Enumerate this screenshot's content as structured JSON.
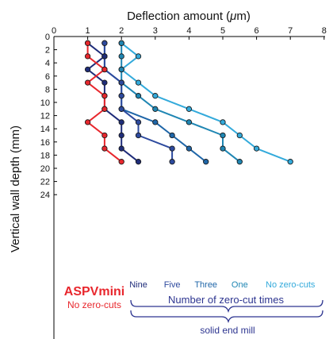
{
  "chart_data": {
    "type": "line",
    "xlabel_prefix": "Deflection amount (",
    "xlabel_mu": "μ",
    "xlabel_suffix": "m)",
    "ylabel": "Vertical wall depth (mm)",
    "xlim": [
      0,
      8
    ],
    "ylim": [
      0,
      24
    ],
    "x_ticks": [
      "0",
      "1",
      "2",
      "3",
      "4",
      "5",
      "6",
      "7",
      "8"
    ],
    "y_ticks": [
      "0",
      "2",
      "4",
      "6",
      "8",
      "10",
      "12",
      "14",
      "16",
      "18",
      "20",
      "22",
      "24"
    ],
    "x_axis_position": "top",
    "y_axis_inverted": true,
    "series": [
      {
        "name": "ASPVmini",
        "color": "#e8272d",
        "points": [
          [
            1,
            1
          ],
          [
            1,
            3
          ],
          [
            1.5,
            5
          ],
          [
            1,
            7
          ],
          [
            1.5,
            9
          ],
          [
            1.5,
            11
          ],
          [
            1,
            13
          ],
          [
            1.5,
            15
          ],
          [
            1.5,
            17
          ],
          [
            2,
            19
          ]
        ]
      },
      {
        "name": "Nine",
        "color": "#1f2d7a",
        "points": [
          [
            1,
            1
          ],
          [
            1.5,
            3
          ],
          [
            1,
            5
          ],
          [
            1.5,
            7
          ],
          [
            1.5,
            9
          ],
          [
            1.5,
            11
          ],
          [
            2,
            13
          ],
          [
            2,
            15
          ],
          [
            2,
            17
          ],
          [
            2.5,
            19
          ]
        ]
      },
      {
        "name": "Five",
        "color": "#2d4a9e",
        "points": [
          [
            1.5,
            1
          ],
          [
            1.5,
            3
          ],
          [
            1.5,
            5
          ],
          [
            2,
            7
          ],
          [
            2,
            9
          ],
          [
            2,
            11
          ],
          [
            2.5,
            13
          ],
          [
            2.5,
            15
          ],
          [
            3.5,
            17
          ],
          [
            3.5,
            19
          ]
        ]
      },
      {
        "name": "Three",
        "color": "#1f66a8",
        "points": [
          [
            1.5,
            1
          ],
          [
            1.5,
            3
          ],
          [
            1.5,
            5
          ],
          [
            2,
            7
          ],
          [
            2,
            9
          ],
          [
            2,
            11
          ],
          [
            3,
            13
          ],
          [
            3.5,
            15
          ],
          [
            4,
            17
          ],
          [
            4.5,
            19
          ]
        ]
      },
      {
        "name": "One",
        "color": "#1f86b3",
        "points": [
          [
            2,
            1
          ],
          [
            2,
            3
          ],
          [
            2,
            5
          ],
          [
            2,
            7
          ],
          [
            2.5,
            9
          ],
          [
            3,
            11
          ],
          [
            4,
            13
          ],
          [
            5,
            15
          ],
          [
            5,
            17
          ],
          [
            5.5,
            19
          ]
        ]
      },
      {
        "name": "No zero-cuts",
        "color": "#33aadb",
        "points": [
          [
            2,
            1
          ],
          [
            2.5,
            3
          ],
          [
            2,
            5
          ],
          [
            2.5,
            7
          ],
          [
            3,
            9
          ],
          [
            4,
            11
          ],
          [
            5,
            13
          ],
          [
            5.5,
            15
          ],
          [
            6,
            17
          ],
          [
            7,
            19
          ]
        ]
      }
    ],
    "annotations": {
      "aspv_title": "ASPVmini",
      "aspv_sub": "No zero-cuts",
      "zero_cut_label": "Number of zero-cut times",
      "end_mill_label": "solid end mill"
    }
  }
}
